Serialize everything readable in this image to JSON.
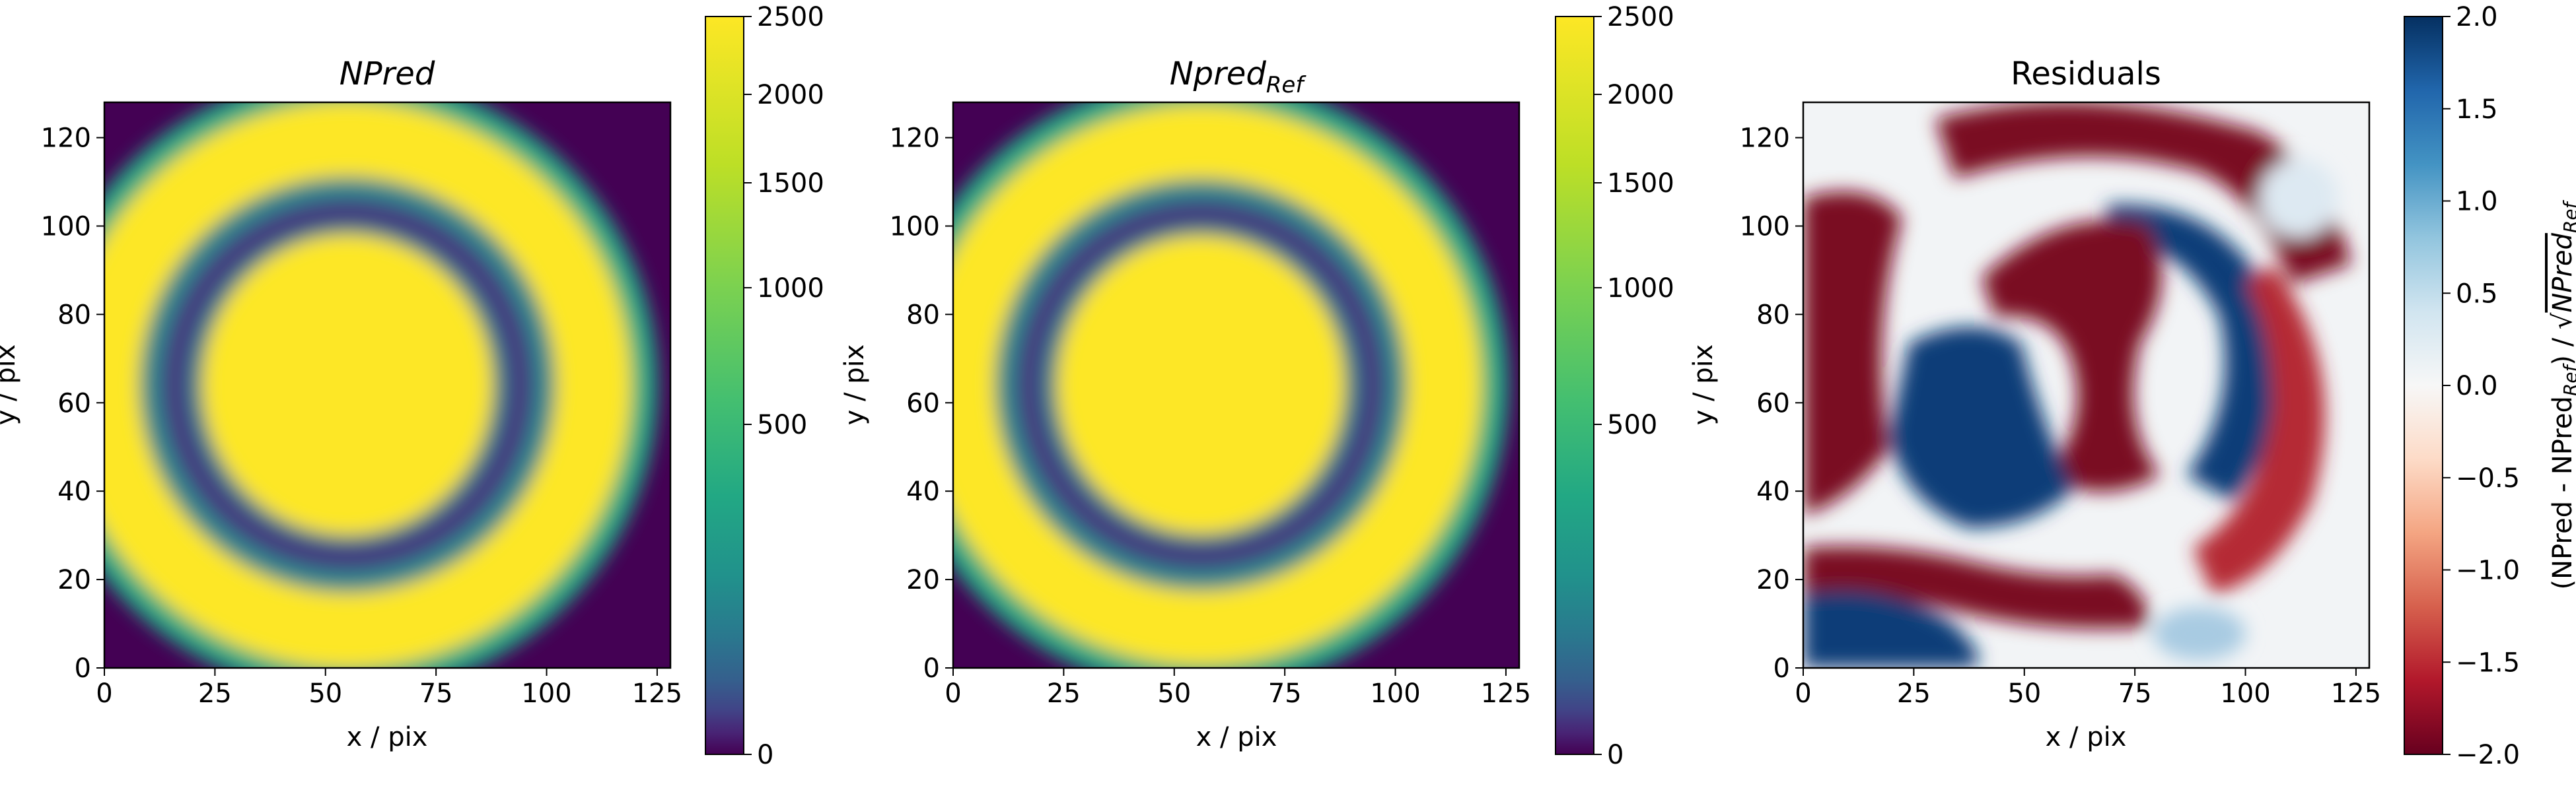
{
  "chart_data": [
    {
      "type": "heatmap",
      "title": "NPred",
      "xlabel": "x / pix",
      "ylabel": "y / pix",
      "xlim": [
        0,
        128
      ],
      "ylim": [
        0,
        128
      ],
      "xticks": [
        "0",
        "25",
        "50",
        "75",
        "100",
        "125"
      ],
      "yticks": [
        "0",
        "20",
        "40",
        "60",
        "80",
        "100",
        "120"
      ],
      "colormap": "viridis",
      "color_scale": "power-law (sqrt-like)",
      "colorbar": {
        "range": [
          0,
          2500
        ],
        "ticks": [
          "0",
          "500",
          "1000",
          "1500",
          "2000",
          "2500"
        ]
      },
      "structure": {
        "center": [
          55,
          64
        ],
        "inner_disk_radius": 34,
        "dark_ring_radius": 42,
        "outer_ring_radius": 57,
        "outer_edge_radius": 70,
        "saturated_value": 2500
      }
    },
    {
      "type": "heatmap",
      "title": "Npred",
      "title_subscript": "Ref",
      "xlabel": "x / pix",
      "ylabel": "y / pix",
      "xlim": [
        0,
        128
      ],
      "ylim": [
        0,
        128
      ],
      "xticks": [
        "0",
        "25",
        "50",
        "75",
        "100",
        "125"
      ],
      "yticks": [
        "0",
        "20",
        "40",
        "60",
        "80",
        "100",
        "120"
      ],
      "colormap": "viridis",
      "color_scale": "power-law (sqrt-like)",
      "colorbar": {
        "range": [
          0,
          2500
        ],
        "ticks": [
          "0",
          "500",
          "1000",
          "1500",
          "2000",
          "2500"
        ]
      },
      "structure": {
        "center": [
          56,
          64
        ],
        "inner_disk_radius": 34,
        "dark_ring_radius": 42,
        "outer_ring_radius": 56,
        "outer_edge_radius": 69,
        "saturated_value": 2500
      }
    },
    {
      "type": "heatmap",
      "title": "Residuals",
      "xlabel": "x / pix",
      "ylabel": "y / pix",
      "xlim": [
        0,
        128
      ],
      "ylim": [
        0,
        128
      ],
      "xticks": [
        "0",
        "25",
        "50",
        "75",
        "100",
        "125"
      ],
      "yticks": [
        "0",
        "20",
        "40",
        "60",
        "80",
        "100",
        "120"
      ],
      "colormap": "RdBu",
      "colorbar": {
        "range": [
          -2.0,
          2.0
        ],
        "ticks": [
          "2.0",
          "1.5",
          "1.0",
          "0.5",
          "0.0",
          "−0.5",
          "−1.0",
          "−1.5",
          "−2.0"
        ],
        "label_prefix": "(NPred - NPred",
        "label_sub1": "Ref",
        "label_mid": ") / √",
        "label_root": "NPred",
        "label_sub2": "Ref"
      }
    }
  ]
}
